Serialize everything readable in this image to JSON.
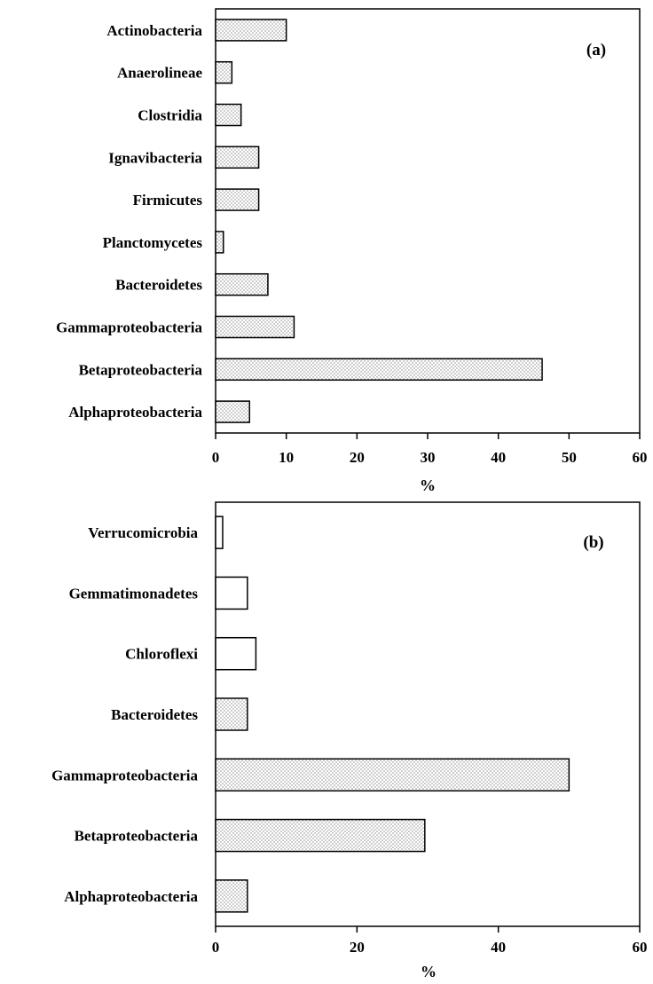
{
  "chart_data": [
    {
      "type": "bar",
      "orientation": "horizontal",
      "panel_label": "(a)",
      "xlabel": "%",
      "xlim": [
        0,
        60
      ],
      "xticks": [
        0,
        10,
        20,
        30,
        40,
        50,
        60
      ],
      "categories": [
        "Actinobacteria",
        "Anaerolineae",
        "Clostridia",
        "Ignavibacteria",
        "Firmicutes",
        "Planctomycetes",
        "Bacteroidetes",
        "Gammaproteobacteria",
        "Betaproteobacteria",
        "Alphaproteobacteria"
      ],
      "values": [
        10,
        2.3,
        3.6,
        6.1,
        6.1,
        1.1,
        7.4,
        11.1,
        46.2,
        4.8
      ],
      "fill": [
        "dotted",
        "dotted",
        "dotted",
        "dotted",
        "dotted",
        "dotted",
        "dotted",
        "dotted",
        "dotted",
        "dotted"
      ],
      "grid": false
    },
    {
      "type": "bar",
      "orientation": "horizontal",
      "panel_label": "(b)",
      "xlabel": "%",
      "xlim": [
        0,
        60
      ],
      "xticks": [
        0,
        20,
        40,
        60
      ],
      "categories": [
        "Verrucomicrobia",
        "Gemmatimonadetes",
        "Chloroflexi",
        "Bacteroidetes",
        "Gammaproteobacteria",
        "Betaproteobacteria",
        "Alphaproteobacteria"
      ],
      "values": [
        1.0,
        4.5,
        5.7,
        4.5,
        50.0,
        29.6,
        4.5
      ],
      "fill": [
        "plain",
        "plain",
        "plain",
        "dotted",
        "dotted",
        "dotted",
        "dotted"
      ],
      "grid": false
    }
  ]
}
